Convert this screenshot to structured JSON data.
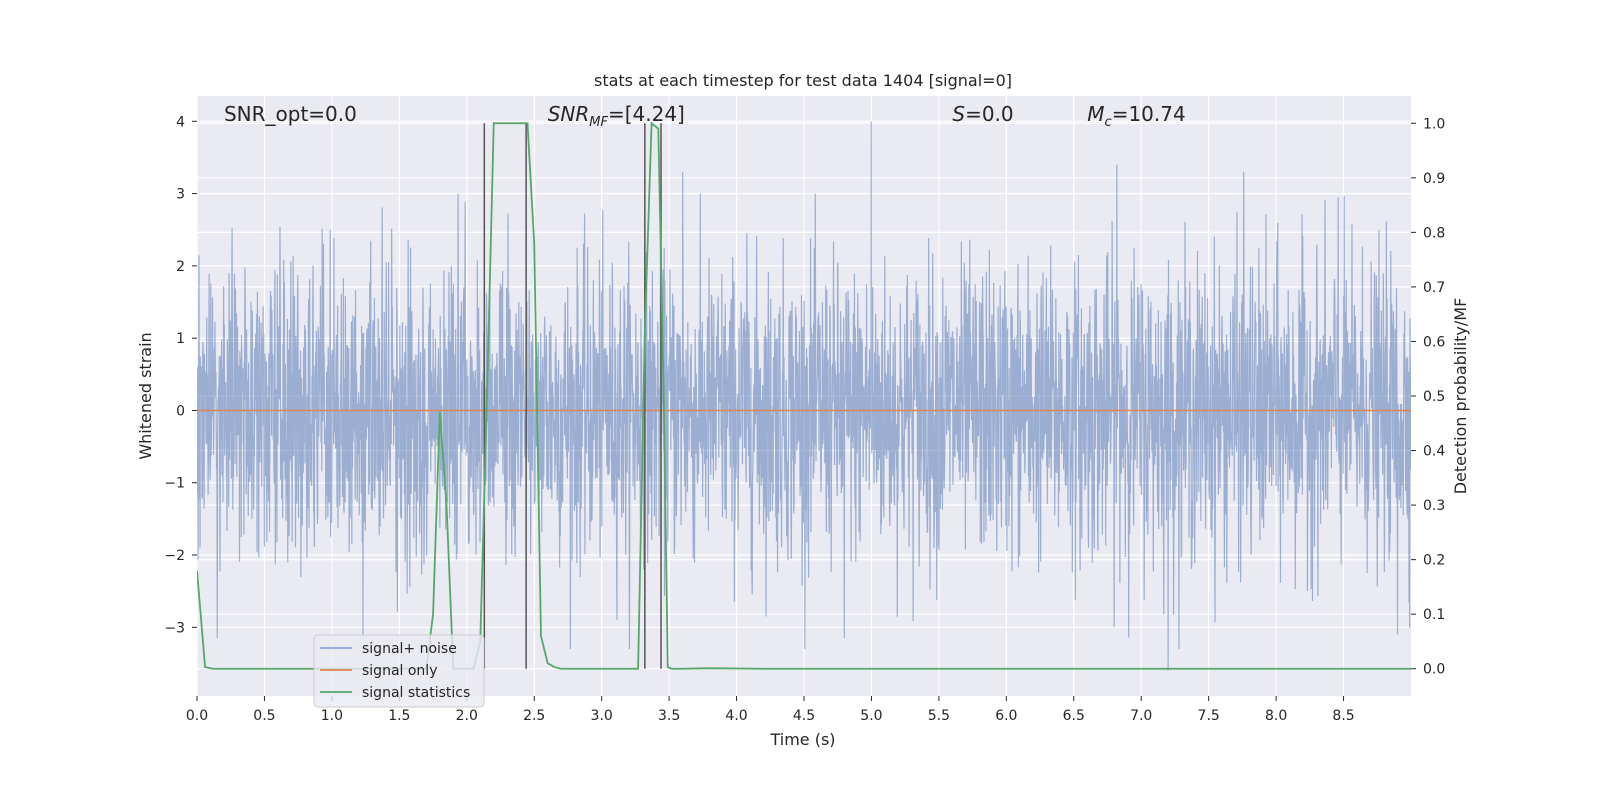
{
  "chart_data": {
    "type": "line",
    "title": "stats at each timestep for test data 1404 [signal=0]",
    "xlabel": "Time (s)",
    "ylabel_left": "Whitened strain",
    "ylabel_right": "Detection probability/MF",
    "xlim": [
      0.0,
      9.0
    ],
    "ylim_left": [
      -3.95,
      4.35
    ],
    "ylim_right": [
      -0.05,
      1.05
    ],
    "x_ticks": [
      0.0,
      0.5,
      1.0,
      1.5,
      2.0,
      2.5,
      3.0,
      3.5,
      4.0,
      4.5,
      5.0,
      5.5,
      6.0,
      6.5,
      7.0,
      7.5,
      8.0,
      8.5
    ],
    "x_tick_labels": [
      "0.0",
      "0.5",
      "1.0",
      "1.5",
      "2.0",
      "2.5",
      "3.0",
      "3.5",
      "4.0",
      "4.5",
      "5.0",
      "5.5",
      "6.0",
      "6.5",
      "7.0",
      "7.5",
      "8.0",
      "8.5"
    ],
    "y_left_ticks": [
      -3,
      -2,
      -1,
      0,
      1,
      2,
      3,
      4
    ],
    "y_left_tick_labels": [
      "−3",
      "−2",
      "−1",
      "0",
      "1",
      "2",
      "3",
      "4"
    ],
    "y_right_ticks": [
      0.0,
      0.1,
      0.2,
      0.3,
      0.4,
      0.5,
      0.6,
      0.7,
      0.8,
      0.9,
      1.0
    ],
    "y_right_tick_labels": [
      "0.0",
      "0.1",
      "0.2",
      "0.3",
      "0.4",
      "0.5",
      "0.6",
      "0.7",
      "0.8",
      "0.9",
      "1.0"
    ],
    "grid": true,
    "legend_position": "lower-left",
    "annotations": [
      {
        "text": "SNR_opt=0.0",
        "x": 0.2
      },
      {
        "text": "SNR_MF=[4.24]",
        "x": 2.6
      },
      {
        "text": "S=0.0",
        "x": 5.6
      },
      {
        "text": "M_c=10.74",
        "x": 6.6
      }
    ],
    "vertical_lines_x": [
      2.13,
      2.44,
      3.32,
      3.44
    ],
    "series": [
      {
        "name": "signal+ noise",
        "color": "#4c72b0",
        "axis": "left",
        "kind": "noise",
        "x_range": [
          0.0,
          9.0
        ],
        "spikes": [
          {
            "x": 5.0,
            "y": 4.0
          },
          {
            "x": 6.82,
            "y": 3.4
          },
          {
            "x": 7.76,
            "y": 3.3
          },
          {
            "x": 3.6,
            "y": 3.3
          },
          {
            "x": 8.46,
            "y": 2.95
          },
          {
            "x": 7.2,
            "y": -3.6
          },
          {
            "x": 0.15,
            "y": -3.15
          },
          {
            "x": 8.9,
            "y": -3.1
          },
          {
            "x": 4.8,
            "y": -3.15
          }
        ]
      },
      {
        "name": "signal only",
        "color": "#dd8452",
        "axis": "left",
        "x": [
          0.0,
          9.0
        ],
        "y": [
          0.0,
          0.0
        ]
      },
      {
        "name": "signal statistics",
        "color": "#55a868",
        "axis": "right",
        "x": [
          0.0,
          0.06,
          0.12,
          0.6,
          1.2,
          1.7,
          1.75,
          1.8,
          1.85,
          1.9,
          1.95,
          2.0,
          2.05,
          2.1,
          2.15,
          2.2,
          2.3,
          2.4,
          2.45,
          2.5,
          2.55,
          2.6,
          2.65,
          2.7,
          2.8,
          3.0,
          3.2,
          3.27,
          3.32,
          3.37,
          3.42,
          3.46,
          3.49,
          3.52,
          3.6,
          3.8,
          4.2,
          9.0
        ],
        "y": [
          0.18,
          0.003,
          0.0,
          0.0,
          0.0,
          0.0,
          0.1,
          0.47,
          0.3,
          0.0,
          0.0,
          0.0,
          0.0,
          0.05,
          0.5,
          1.0,
          1.0,
          1.0,
          1.0,
          0.78,
          0.06,
          0.01,
          0.003,
          0.0,
          0.0,
          0.0,
          0.0,
          0.0,
          0.62,
          1.0,
          0.99,
          0.5,
          0.003,
          0.0,
          0.0,
          0.001,
          0.0,
          0.0
        ]
      }
    ]
  }
}
